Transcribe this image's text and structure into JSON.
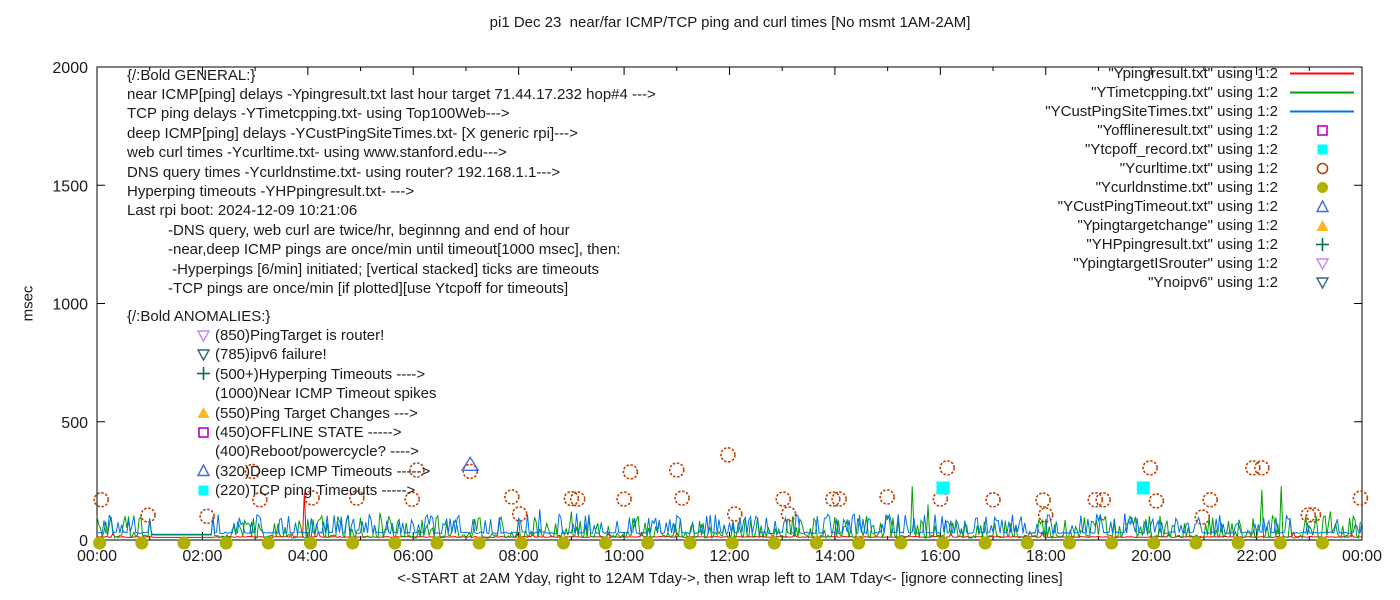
{
  "title": "pi1 Dec 23  near/far ICMP/TCP ping and curl times [No msmt 1AM-2AM]",
  "xlabel": "<-START at 2AM Yday, right to 12AM Tday->, then wrap left to 1AM Tday<- [ignore connecting lines]",
  "ylabel": "msec",
  "general_block": {
    "heading": "{/:Bold GENERAL:}",
    "lines": [
      "near ICMP[ping] delays -Ypingresult.txt last hour target 71.44.17.232 hop#4 --->",
      "TCP ping delays -YTimetcpping.txt- using Top100Web--->",
      "deep ICMP[ping] delays -YCustPingSiteTimes.txt- [X generic rpi]--->",
      "web curl times -Ycurltime.txt- using www.stanford.edu--->",
      "DNS query times -Ycurldnstime.txt- using router? 192.168.1.1--->",
      "Hyperping timeouts -YHPpingresult.txt- --->",
      "Last rpi boot: 2024-12-09 10:21:06"
    ],
    "notes": [
      "-DNS query, web curl are twice/hr, beginnng and end of hour",
      "-near,deep ICMP pings are once/min until timeout[1000 msec], then:",
      " -Hyperpings [6/min] initiated; [vertical stacked] ticks are timeouts",
      "-TCP pings are once/min [if plotted][use Ytcpoff for timeouts]"
    ]
  },
  "anomalies_block": {
    "heading": "{/:Bold ANOMALIES:}",
    "items": [
      {
        "marker": "triangle-down-open",
        "color": "#cc85f5",
        "text": "(850)PingTarget is router!"
      },
      {
        "marker": "triangle-down-open",
        "color": "#33677f",
        "text": "(785)ipv6 failure!"
      },
      {
        "marker": "plus",
        "color": "#007050",
        "text": "(500+)Hyperping Timeouts ---->"
      },
      {
        "marker": "none",
        "color": "",
        "text": "(1000)Near ICMP Timeout spikes"
      },
      {
        "marker": "triangle-up-filled",
        "color": "#ffb624",
        "text": "(550)Ping Target Changes --->"
      },
      {
        "marker": "square-open",
        "color": "#c000c0",
        "text": "(450)OFFLINE STATE ----->"
      },
      {
        "marker": "none",
        "color": "",
        "text": "(400)Reboot/powercycle? ---->"
      },
      {
        "marker": "triangle-up-open",
        "color": "#4169e1",
        "text": "(320)Deep ICMP Timeouts ----->"
      },
      {
        "marker": "square-filled",
        "color": "#00ffff",
        "text": "(220)TCP ping Timeouts ----->"
      }
    ]
  },
  "legend": [
    {
      "label": "\"Ypingresult.txt\" using 1:2",
      "sample": "line",
      "color": "#ff0000"
    },
    {
      "label": "\"YTimetcpping.txt\" using 1:2",
      "sample": "line",
      "color": "#00a000"
    },
    {
      "label": "\"YCustPingSiteTimes.txt\" using 1:2",
      "sample": "line",
      "color": "#0073e6"
    },
    {
      "label": "\"Yofflineresult.txt\" using 1:2",
      "sample": "square-open",
      "color": "#c000c0"
    },
    {
      "label": "\"Ytcpoff_record.txt\" using 1:2",
      "sample": "square-filled",
      "color": "#00ffff"
    },
    {
      "label": "\"Ycurltime.txt\" using 1:2",
      "sample": "circle-open",
      "color": "#c04000"
    },
    {
      "label": "\"Ycurldnstime.txt\" using 1:2",
      "sample": "circle-filled",
      "color": "#b0b000"
    },
    {
      "label": "\"YCustPingTimeout.txt\" using 1:2",
      "sample": "triangle-up-open",
      "color": "#4169e1"
    },
    {
      "label": "\"Ypingtargetchange\" using 1:2",
      "sample": "triangle-up-filled",
      "color": "#ffb624"
    },
    {
      "label": "\"YHPpingresult.txt\" using 1:2",
      "sample": "plus",
      "color": "#007050"
    },
    {
      "label": "\"YpingtargetISrouter\" using 1:2",
      "sample": "triangle-down-open",
      "color": "#cc85f5"
    },
    {
      "label": "\"Ynoipv6\" using 1:2",
      "sample": "triangle-down-open",
      "color": "#33677f"
    }
  ],
  "chart_data": {
    "type": "line",
    "title": "pi1 Dec 23  near/far ICMP/TCP ping and curl times [No msmt 1AM-2AM]",
    "xlabel": "<-START at 2AM Yday, right to 12AM Tday->, then wrap left to 1AM Tday<- [ignore connecting lines]",
    "ylabel": "msec",
    "x_axis": {
      "range_hours": [
        0,
        24
      ],
      "major_tick_every_hours": 2,
      "minor_tick_every_hours": 1,
      "tick_labels": [
        "00:00",
        "02:00",
        "04:00",
        "06:00",
        "08:00",
        "10:00",
        "12:00",
        "14:00",
        "16:00",
        "18:00",
        "20:00",
        "22:00",
        "00:00"
      ]
    },
    "y_axis": {
      "ticks": [
        0,
        500,
        1000,
        1500,
        2000
      ],
      "range": [
        0,
        2000
      ]
    },
    "grid": false,
    "legend_position": "top-right-inside",
    "measurement_gap": {
      "start_hour": 1.05,
      "end_hour": 2.2,
      "note": "No msmt 1AM-2AM"
    },
    "series": [
      {
        "name": "Ypingresult.txt",
        "color": "#ff0000",
        "style": "line",
        "seed": 101,
        "baseline_msec": 11,
        "jitter_msec": 4,
        "spike_probability": 0.03,
        "spike_min": 14,
        "spike_max": 24,
        "gap_value": 11,
        "spikes": [
          [
            3.92,
            200
          ]
        ]
      },
      {
        "name": "YTimetcpping.txt",
        "color": "#00a000",
        "style": "line",
        "seed": 202,
        "baseline_msec": 8,
        "jitter_msec": 14,
        "spike_probability": 0.42,
        "spike_min": 20,
        "spike_max": 95,
        "gap_value": 24,
        "spikes": [
          [
            5.35,
            115
          ],
          [
            9.0,
            120
          ],
          [
            15.45,
            228
          ],
          [
            15.75,
            150
          ],
          [
            22.1,
            212
          ],
          [
            22.45,
            228
          ],
          [
            23.4,
            120
          ]
        ]
      },
      {
        "name": "YCustPingSiteTimes.txt",
        "color": "#0073e6",
        "style": "line",
        "seed": 303,
        "baseline_msec": 27,
        "jitter_msec": 7,
        "spike_probability": 0.3,
        "spike_min": 34,
        "spike_max": 82,
        "gap_value": 21,
        "spikes": [
          [
            8.4,
            130
          ],
          [
            9.1,
            112
          ],
          [
            12.3,
            95
          ],
          [
            18.95,
            110
          ],
          [
            19.5,
            113
          ]
        ]
      }
    ],
    "points": {
      "curl_circles": {
        "name": "Ycurltime.txt",
        "color": "#c04000",
        "data": [
          [
            0.08,
            170
          ],
          [
            0.97,
            105
          ],
          [
            2.09,
            100
          ],
          [
            2.95,
            290
          ],
          [
            3.09,
            170
          ],
          [
            4.08,
            178
          ],
          [
            4.93,
            177
          ],
          [
            5.98,
            172
          ],
          [
            6.07,
            296
          ],
          [
            7.08,
            290
          ],
          [
            7.87,
            182
          ],
          [
            8.02,
            110
          ],
          [
            9.0,
            175
          ],
          [
            9.12,
            173
          ],
          [
            10.0,
            173
          ],
          [
            10.12,
            288
          ],
          [
            11.0,
            296
          ],
          [
            11.1,
            177
          ],
          [
            11.97,
            360
          ],
          [
            12.1,
            110
          ],
          [
            13.02,
            173
          ],
          [
            13.12,
            110
          ],
          [
            13.96,
            173
          ],
          [
            14.08,
            173
          ],
          [
            14.99,
            182
          ],
          [
            16.0,
            173
          ],
          [
            16.13,
            305
          ],
          [
            17.0,
            170
          ],
          [
            17.95,
            169
          ],
          [
            18.0,
            106
          ],
          [
            18.94,
            170
          ],
          [
            19.09,
            170
          ],
          [
            19.98,
            305
          ],
          [
            20.1,
            165
          ],
          [
            20.97,
            97
          ],
          [
            21.12,
            170
          ],
          [
            21.93,
            305
          ],
          [
            22.1,
            305
          ],
          [
            22.98,
            106
          ],
          [
            23.08,
            106
          ],
          [
            23.97,
            177
          ]
        ]
      },
      "dns_dots": {
        "name": "Ycurldnstime.txt",
        "color": "#b0b000",
        "start": 0.05,
        "end": 24,
        "interval_hours": 0.8,
        "value_msec": 0
      },
      "tcp_timeout_squares": {
        "name": "Ytcpoff_record.txt",
        "color": "#00ffff",
        "data": [
          [
            16.05,
            220
          ],
          [
            19.85,
            220
          ]
        ]
      },
      "deep_icmp_timeout_triangles": {
        "name": "YCustPingTimeout.txt",
        "color": "#4169e1",
        "data": [
          [
            7.08,
            320
          ]
        ]
      }
    }
  }
}
